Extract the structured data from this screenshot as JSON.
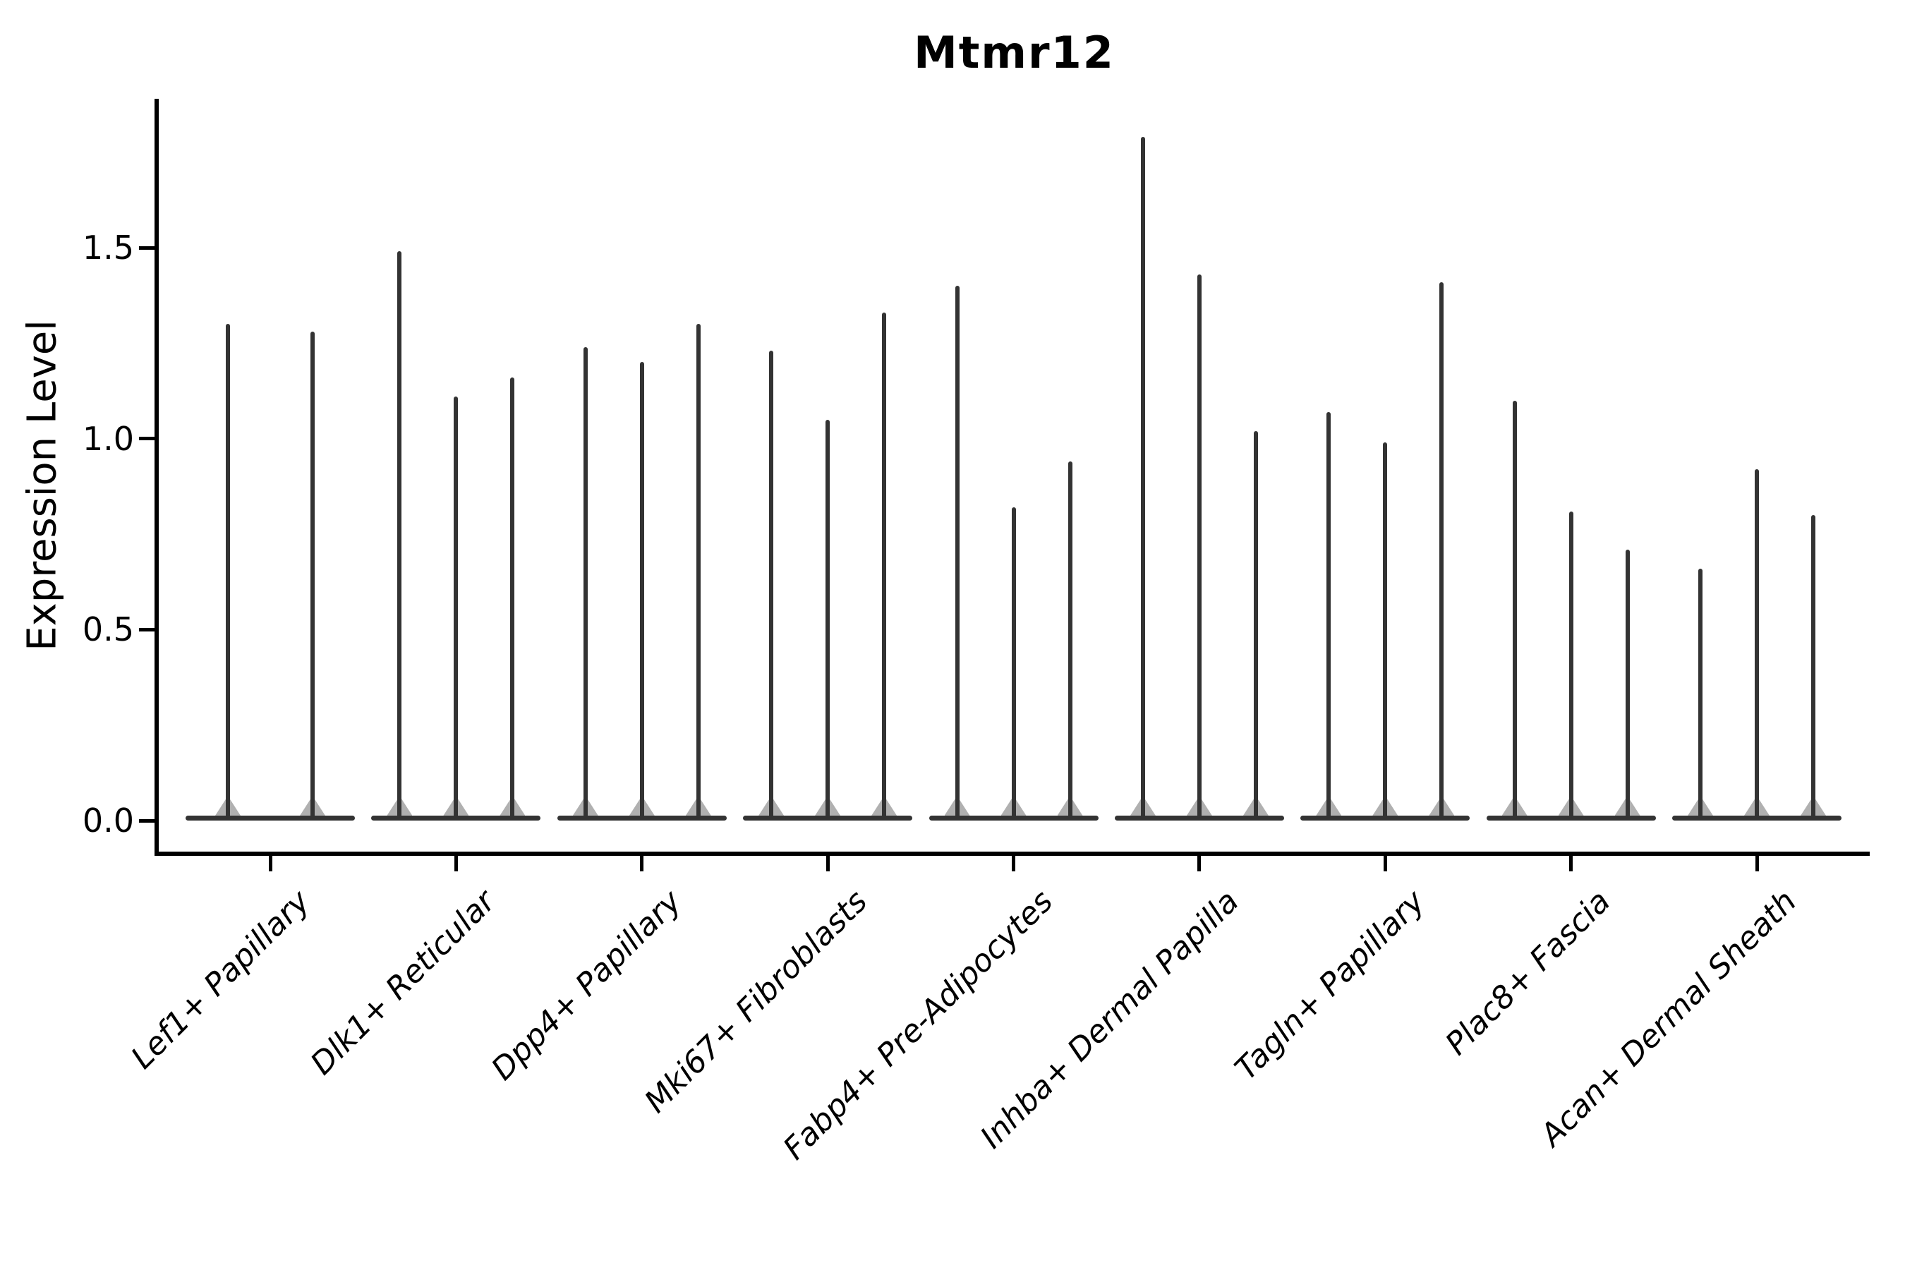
{
  "title": "Mtmr12",
  "y_axis": {
    "label": "Expression Level",
    "tick_labels": [
      "0.0",
      "0.5",
      "1.0",
      "1.5"
    ],
    "tick_values": [
      0.0,
      0.5,
      1.0,
      1.5
    ]
  },
  "x_axis": {
    "categories": [
      "Lef1+ Papillary",
      "Dlk1+ Reticular",
      "Dpp4+ Papillary",
      "Mki67+ Fibroblasts",
      "Fabp4+ Pre-Adipocytes",
      "Inhba+ Dermal Papilla",
      "Tagln+ Papillary",
      "Plac8+ Fascia",
      "Acan+ Dermal Sheath"
    ]
  },
  "chart_data": {
    "type": "violin",
    "title": "Mtmr12",
    "xlabel": "",
    "ylabel": "Expression Level",
    "ylim": [
      -0.09,
      1.89
    ],
    "yticks": [
      0.0,
      0.5,
      1.0,
      1.5
    ],
    "grid": false,
    "legend": "none",
    "categories": [
      "Lef1+ Papillary",
      "Dlk1+ Reticular",
      "Dpp4+ Papillary",
      "Mki67+ Fibroblasts",
      "Fabp4+ Pre-Adipocytes",
      "Inhba+ Dermal Papilla",
      "Tagln+ Papillary",
      "Plac8+ Fascia",
      "Acan+ Dermal Sheath"
    ],
    "groups": [
      {
        "category": "Lef1+ Papillary",
        "violin_maxima": [
          1.3,
          1.28
        ]
      },
      {
        "category": "Dlk1+ Reticular",
        "violin_maxima": [
          1.49,
          1.11,
          1.16
        ]
      },
      {
        "category": "Dpp4+ Papillary",
        "violin_maxima": [
          1.24,
          1.2,
          1.3
        ]
      },
      {
        "category": "Mki67+ Fibroblasts",
        "violin_maxima": [
          1.23,
          1.05,
          1.33
        ]
      },
      {
        "category": "Fabp4+ Pre-Adipocytes",
        "violin_maxima": [
          1.4,
          0.82,
          0.94
        ]
      },
      {
        "category": "Inhba+ Dermal Papilla",
        "violin_maxima": [
          1.79,
          1.43,
          1.02
        ]
      },
      {
        "category": "Tagln+ Papillary",
        "violin_maxima": [
          1.07,
          0.99,
          1.41
        ]
      },
      {
        "category": "Plac8+ Fascia",
        "violin_maxima": [
          1.1,
          0.81,
          0.71
        ]
      },
      {
        "category": "Acan+ Dermal Sheath",
        "violin_maxima": [
          0.66,
          0.92,
          0.8
        ]
      }
    ],
    "baseline_value": 0.0,
    "violin_shape_note": "needle-like violins: wide flat base at 0 expression, thin stem rising to the listed maximum",
    "colors": {
      "violin": "#333333",
      "axis": "#000000",
      "text": "#000000",
      "background": "#ffffff"
    }
  }
}
